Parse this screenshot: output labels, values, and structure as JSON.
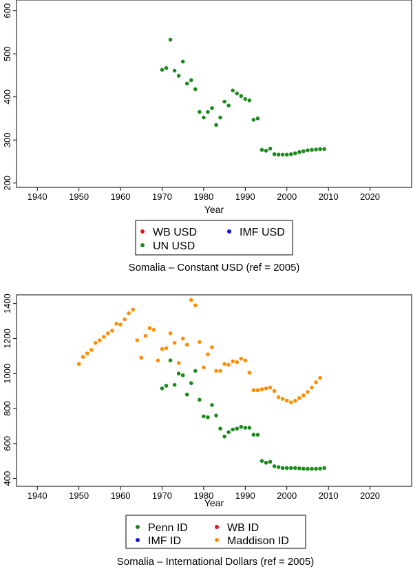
{
  "chart_data": [
    {
      "type": "scatter",
      "title": "Somalia – Constant USD (ref = 2005)",
      "xlabel": "Year",
      "ylabel": "",
      "xlim": [
        1935,
        2030
      ],
      "ylim": [
        190,
        625
      ],
      "xticks": [
        1940,
        1950,
        1960,
        1970,
        1980,
        1990,
        2000,
        2010,
        2020
      ],
      "yticks": [
        200,
        300,
        400,
        500,
        600
      ],
      "legend": [
        {
          "name": "WB USD",
          "color": "#e8100e"
        },
        {
          "name": "IMF USD",
          "color": "#1010e8"
        },
        {
          "name": "UN USD",
          "color": "#1a8a1a"
        }
      ],
      "series": [
        {
          "name": "WB USD",
          "color": "#e8100e",
          "x": [],
          "y": []
        },
        {
          "name": "IMF USD",
          "color": "#1010e8",
          "x": [],
          "y": []
        },
        {
          "name": "UN USD",
          "color": "#1a8a1a",
          "x": [
            1970,
            1971,
            1972,
            1973,
            1974,
            1975,
            1976,
            1977,
            1978,
            1979,
            1980,
            1981,
            1982,
            1983,
            1984,
            1985,
            1986,
            1987,
            1988,
            1989,
            1990,
            1991,
            1992,
            1993,
            1994,
            1995,
            1996,
            1997,
            1998,
            1999,
            2000,
            2001,
            2002,
            2003,
            2004,
            2005,
            2006,
            2007,
            2008,
            2009
          ],
          "y": [
            463,
            467,
            533,
            461,
            449,
            482,
            431,
            439,
            418,
            365,
            352,
            365,
            374,
            335,
            352,
            389,
            380,
            415,
            408,
            402,
            395,
            392,
            347,
            350,
            277,
            275,
            280,
            267,
            266,
            266,
            266,
            267,
            269,
            272,
            274,
            276,
            277,
            278,
            279,
            279
          ]
        }
      ]
    },
    {
      "type": "scatter",
      "title": "Somalia – International Dollars (ref = 2005)",
      "xlabel": "Year",
      "ylabel": "",
      "xlim": [
        1935,
        2030
      ],
      "ylim": [
        355,
        1450
      ],
      "xticks": [
        1940,
        1950,
        1960,
        1970,
        1980,
        1990,
        2000,
        2010,
        2020
      ],
      "yticks": [
        400,
        600,
        800,
        1000,
        1200,
        1400
      ],
      "legend": [
        {
          "name": "Penn ID",
          "color": "#1a8a1a"
        },
        {
          "name": "WB ID",
          "color": "#e8100e"
        },
        {
          "name": "IMF ID",
          "color": "#1010e8"
        },
        {
          "name": "Maddison ID",
          "color": "#ff8c00"
        }
      ],
      "series": [
        {
          "name": "Maddison ID",
          "color": "#ff8c00",
          "x": [
            1950,
            1951,
            1952,
            1953,
            1954,
            1955,
            1956,
            1957,
            1958,
            1959,
            1960,
            1961,
            1962,
            1963,
            1964,
            1965,
            1966,
            1967,
            1968,
            1969,
            1970,
            1971,
            1972,
            1973,
            1974,
            1975,
            1976,
            1977,
            1978,
            1979,
            1980,
            1981,
            1982,
            1983,
            1984,
            1985,
            1986,
            1987,
            1988,
            1989,
            1990,
            1991,
            1992,
            1993,
            1994,
            1995,
            1996,
            1997,
            1998,
            1999,
            2000,
            2001,
            2002,
            2003,
            2004,
            2005,
            2006,
            2007,
            2008
          ],
          "y": [
            1055,
            1095,
            1115,
            1135,
            1175,
            1190,
            1210,
            1230,
            1245,
            1285,
            1280,
            1310,
            1345,
            1365,
            1190,
            1090,
            1215,
            1260,
            1250,
            1075,
            1140,
            1145,
            1230,
            1175,
            1060,
            1200,
            1165,
            1420,
            1390,
            1180,
            1035,
            1110,
            1150,
            1015,
            1015,
            1055,
            1050,
            1070,
            1065,
            1085,
            1075,
            1005,
            905,
            905,
            910,
            915,
            920,
            900,
            865,
            855,
            845,
            835,
            845,
            860,
            875,
            895,
            920,
            950,
            975
          ]
        },
        {
          "name": "Penn ID",
          "color": "#1a8a1a",
          "x": [
            1970,
            1971,
            1972,
            1973,
            1974,
            1975,
            1976,
            1977,
            1978,
            1979,
            1980,
            1981,
            1982,
            1983,
            1984,
            1985,
            1986,
            1987,
            1988,
            1989,
            1990,
            1991,
            1992,
            1993,
            1994,
            1995,
            1996,
            1997,
            1998,
            1999,
            2000,
            2001,
            2002,
            2003,
            2004,
            2005,
            2006,
            2007,
            2008,
            2009
          ],
          "y": [
            915,
            930,
            1075,
            935,
            1000,
            990,
            880,
            945,
            1015,
            850,
            755,
            750,
            820,
            760,
            685,
            640,
            665,
            680,
            685,
            695,
            690,
            690,
            650,
            650,
            500,
            490,
            495,
            470,
            465,
            460,
            460,
            460,
            460,
            458,
            456,
            455,
            455,
            455,
            456,
            460
          ]
        },
        {
          "name": "WB ID",
          "color": "#e8100e",
          "x": [],
          "y": []
        },
        {
          "name": "IMF ID",
          "color": "#1010e8",
          "x": [],
          "y": []
        }
      ]
    }
  ]
}
